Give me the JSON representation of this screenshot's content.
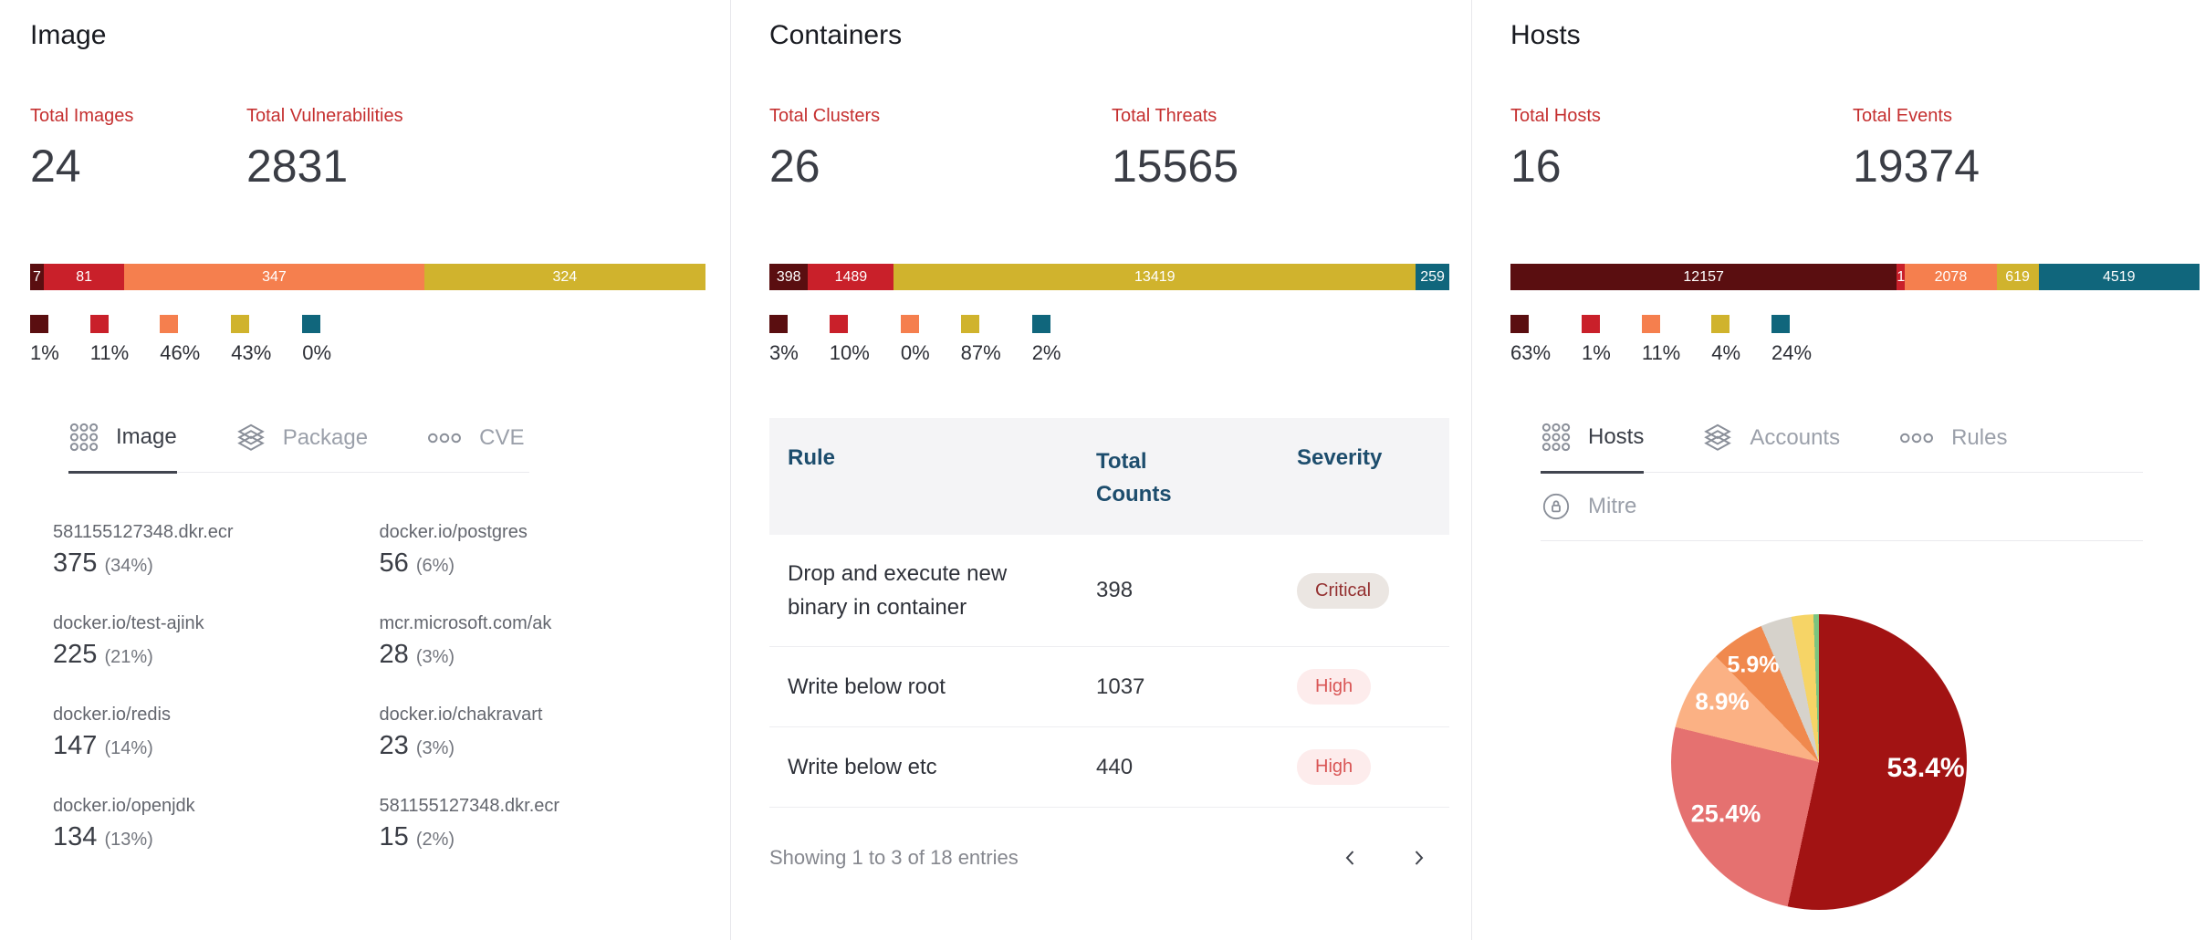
{
  "colors": {
    "maroon": "#5a0e10",
    "red": "#c9202a",
    "orange": "#f57f4e",
    "yellow": "#d0b32d",
    "teal": "#10667c",
    "accent_red": "#c53030",
    "header_navy": "#1d4d6d"
  },
  "panels": {
    "image": {
      "title": "Image",
      "stats": [
        {
          "label": "Total Images",
          "value": "24"
        },
        {
          "label": "Total Vulnerabilities",
          "value": "2831"
        }
      ],
      "bar": {
        "type": "stacked-bar",
        "segments": [
          {
            "value": 7,
            "label": "7",
            "color": "maroon"
          },
          {
            "value": 81,
            "label": "81",
            "color": "red"
          },
          {
            "value": 347,
            "label": "347",
            "color": "orange"
          },
          {
            "value": 324,
            "label": "324",
            "color": "yellow"
          },
          {
            "value": 0,
            "label": "",
            "color": "teal"
          }
        ]
      },
      "legend": [
        {
          "percent": "1%",
          "color": "maroon"
        },
        {
          "percent": "11%",
          "color": "red"
        },
        {
          "percent": "46%",
          "color": "orange"
        },
        {
          "percent": "43%",
          "color": "yellow"
        },
        {
          "percent": "0%",
          "color": "teal"
        }
      ],
      "tabs": [
        {
          "label": "Image",
          "active": true
        },
        {
          "label": "Package",
          "active": false
        },
        {
          "label": "CVE",
          "active": false
        }
      ],
      "list": [
        {
          "name": "581155127348.dkr.ecr",
          "value": "375",
          "percent": "(34%)"
        },
        {
          "name": "docker.io/postgres",
          "value": "56",
          "percent": "(6%)"
        },
        {
          "name": "docker.io/test-ajink",
          "value": "225",
          "percent": "(21%)"
        },
        {
          "name": "mcr.microsoft.com/ak",
          "value": "28",
          "percent": "(3%)"
        },
        {
          "name": "docker.io/redis",
          "value": "147",
          "percent": "(14%)"
        },
        {
          "name": "docker.io/chakravart",
          "value": "23",
          "percent": "(3%)"
        },
        {
          "name": "docker.io/openjdk",
          "value": "134",
          "percent": "(13%)"
        },
        {
          "name": "581155127348.dkr.ecr",
          "value": "15",
          "percent": "(2%)"
        }
      ]
    },
    "containers": {
      "title": "Containers",
      "stats": [
        {
          "label": "Total Clusters",
          "value": "26"
        },
        {
          "label": "Total Threats",
          "value": "15565"
        }
      ],
      "bar": {
        "type": "stacked-bar",
        "segments": [
          {
            "value": 398,
            "label": "398",
            "color": "maroon"
          },
          {
            "value": 1489,
            "label": "1489",
            "color": "red"
          },
          {
            "value": 0,
            "label": "",
            "color": "orange"
          },
          {
            "value": 13419,
            "label": "13419",
            "color": "yellow"
          },
          {
            "value": 259,
            "label": "259",
            "color": "teal"
          }
        ]
      },
      "legend": [
        {
          "percent": "3%",
          "color": "maroon"
        },
        {
          "percent": "10%",
          "color": "red"
        },
        {
          "percent": "0%",
          "color": "orange"
        },
        {
          "percent": "87%",
          "color": "yellow"
        },
        {
          "percent": "2%",
          "color": "teal"
        }
      ],
      "table": {
        "columns": [
          "Rule",
          "Total Counts",
          "Severity"
        ],
        "rows": [
          {
            "rule": "Drop and execute new binary in container",
            "count": "398",
            "severity": "Critical"
          },
          {
            "rule": "Write below root",
            "count": "1037",
            "severity": "High"
          },
          {
            "rule": "Write below etc",
            "count": "440",
            "severity": "High"
          }
        ],
        "footer": "Showing 1 to 3 of 18 entries"
      }
    },
    "hosts": {
      "title": "Hosts",
      "stats": [
        {
          "label": "Total Hosts",
          "value": "16"
        },
        {
          "label": "Total Events",
          "value": "19374"
        }
      ],
      "bar": {
        "type": "stacked-bar",
        "segments": [
          {
            "value": 12157,
            "label": "12157",
            "color": "maroon"
          },
          {
            "value": 1,
            "label": "1",
            "color": "red"
          },
          {
            "value": 2078,
            "label": "2078",
            "color": "orange"
          },
          {
            "value": 619,
            "label": "619",
            "color": "yellow"
          },
          {
            "value": 4519,
            "label": "4519",
            "color": "teal"
          }
        ]
      },
      "legend": [
        {
          "percent": "63%",
          "color": "maroon"
        },
        {
          "percent": "1%",
          "color": "red"
        },
        {
          "percent": "11%",
          "color": "orange"
        },
        {
          "percent": "4%",
          "color": "yellow"
        },
        {
          "percent": "24%",
          "color": "teal"
        }
      ],
      "tabs": [
        {
          "label": "Hosts",
          "active": true
        },
        {
          "label": "Accounts",
          "active": false
        },
        {
          "label": "Rules",
          "active": false
        },
        {
          "label": "Mitre",
          "active": false
        }
      ],
      "pie": {
        "type": "pie",
        "slices": [
          {
            "percent": 53.4,
            "label": "53.4%",
            "color": "#a21313"
          },
          {
            "percent": 25.4,
            "label": "25.4%",
            "color": "#e57170"
          },
          {
            "percent": 8.9,
            "label": "8.9%",
            "color": "#fbb184"
          },
          {
            "percent": 5.9,
            "label": "5.9%",
            "color": "#f0894e"
          },
          {
            "percent": 3.4,
            "label": "",
            "color": "#d6d2cb"
          },
          {
            "percent": 2.4,
            "label": "",
            "color": "#f6d466"
          },
          {
            "percent": 0.6,
            "label": "",
            "color": "#7cc47f"
          }
        ],
        "labels": [
          "53.4%",
          "25.4%",
          "8.9%",
          "5.9%"
        ]
      }
    }
  }
}
